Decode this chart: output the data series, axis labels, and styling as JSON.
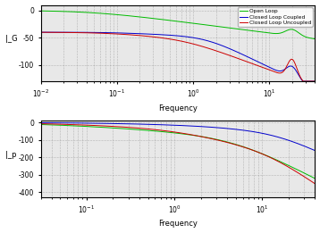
{
  "freq_range_mag": [
    0.01,
    40
  ],
  "freq_range_phase": [
    0.03,
    40
  ],
  "legend_labels": [
    "Open Loop",
    "Closed Loop Coupled",
    "Closed Loop Uncoupled"
  ],
  "colors_ol": "#00bb00",
  "colors_clc": "#0000cc",
  "colors_clu": "#cc0000",
  "mag_ylim": [
    -130,
    10
  ],
  "mag_yticks": [
    0,
    -50,
    -100
  ],
  "phase_ylim": [
    -430,
    10
  ],
  "phase_yticks": [
    0,
    -100,
    -200,
    -300,
    -400
  ],
  "mag_ylabel": "|_G",
  "phase_ylabel": "|_p",
  "xlabel": "Frequency",
  "background": "#e8e8e8",
  "lw": 0.7
}
